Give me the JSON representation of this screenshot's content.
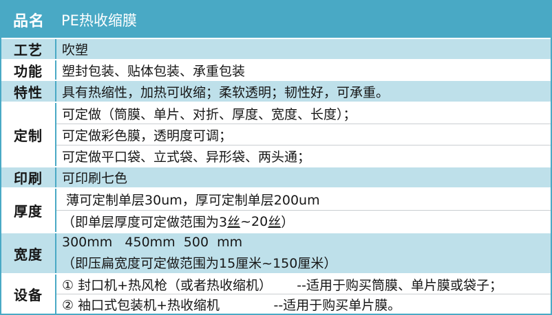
{
  "colors": {
    "teal": "#49a9c5",
    "light_blue": "#bee0ea",
    "text": "#161616"
  },
  "header": {
    "label": "品名",
    "title": "PE热收缩膜"
  },
  "rows": {
    "craft": {
      "label": "工艺",
      "value": "吹塑"
    },
    "function": {
      "label": "功能",
      "value": "塑封包装、贴体包装、承重包装"
    },
    "feature": {
      "label": "特性",
      "value": "具有热缩性，加热可收缩；柔软透明；韧性好，可承重。"
    },
    "custom": {
      "label": "定制",
      "lines": [
        "可定做（筒膜、单片、对折、厚度、宽度、长度）；",
        "可定做彩色膜，透明度可调；",
        "可定做平口袋、立式袋、异形袋、两头通；"
      ]
    },
    "print": {
      "label": "印刷",
      "value": "可印刷七色"
    },
    "thickness": {
      "label": "厚度",
      "line1": " 薄可定制单层30um，厚可定制单层200um",
      "note_parts": [
        "（即单层厚度可定做范围为3",
        "丝",
        "~20",
        "丝",
        "）"
      ]
    },
    "width": {
      "label": "宽度",
      "line1": "300mm   450mm  500  mm",
      "line2": "（即压扁宽度可定做范围为15厘米~150厘米）"
    },
    "equipment": {
      "label": "设备",
      "lines": [
        "① 封口机+热风枪（或者热收缩机）      --适用于购买筒膜、单片膜或袋子；",
        "② 袖口式包装机+热收缩机             --适用于购买单片膜。"
      ]
    }
  }
}
